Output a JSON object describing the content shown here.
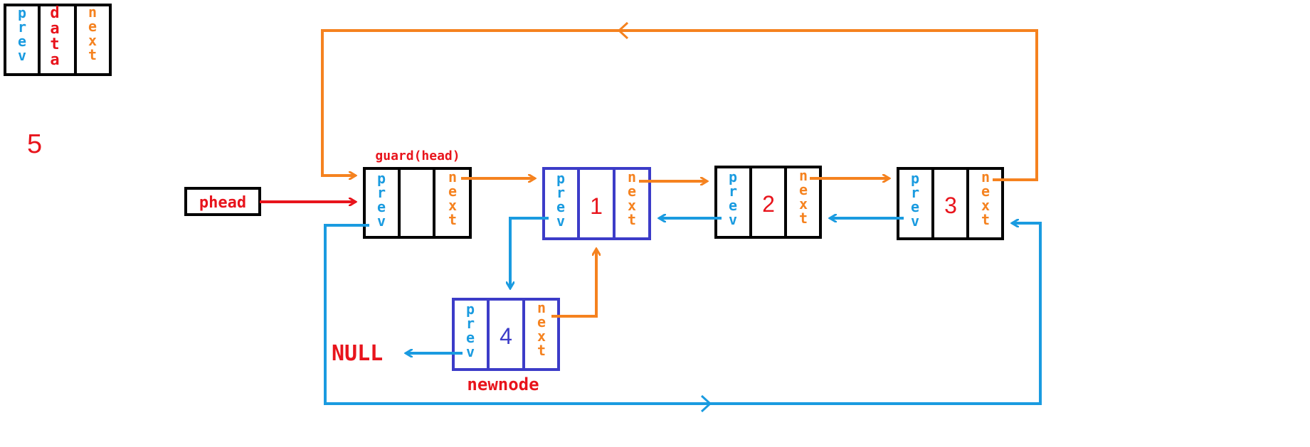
{
  "colors": {
    "orange": "#f5821f",
    "blue": "#1a9be0",
    "red": "#e8141c",
    "black": "#000000",
    "newnode_border": "#3c3cc8",
    "newnode_text": "#3c3cc8"
  },
  "legend": {
    "prev": "prev",
    "data": "data",
    "next": "next"
  },
  "count_label": "5",
  "phead_label": "phead",
  "guard_label": "guard(head)",
  "null_label": "NULL",
  "newnode_label": "newnode",
  "nodes": {
    "guard": {
      "prev": "prev",
      "data": "",
      "next": "next"
    },
    "n1": {
      "prev": "prev",
      "data": "1",
      "next": "next"
    },
    "n2": {
      "prev": "prev",
      "data": "2",
      "next": "next"
    },
    "n3": {
      "prev": "prev",
      "data": "3",
      "next": "next"
    },
    "n4": {
      "prev": "prev",
      "data": "4",
      "next": "next"
    }
  }
}
